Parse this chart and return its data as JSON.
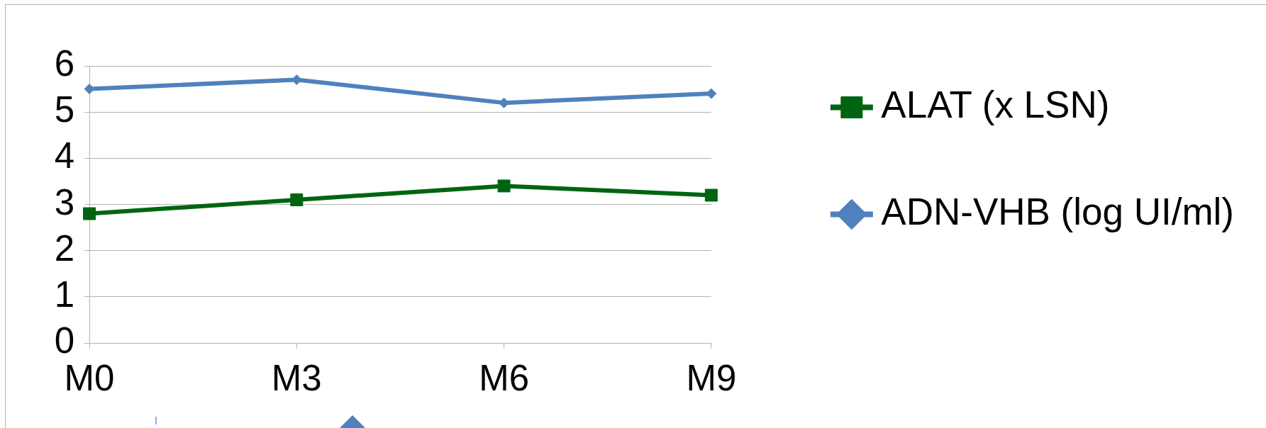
{
  "chart_data": {
    "type": "line",
    "categories": [
      "M0",
      "M3",
      "M6",
      "M9"
    ],
    "series": [
      {
        "name": "ALAT (x LSN)",
        "color": "#006411",
        "marker": "square",
        "values": [
          2.8,
          3.1,
          3.4,
          3.2
        ]
      },
      {
        "name": "ADN-VHB (log UI/ml)",
        "color": "#4f81bd",
        "marker": "diamond",
        "values": [
          5.5,
          5.7,
          5.2,
          5.4
        ]
      }
    ],
    "ylim": [
      0,
      6
    ],
    "yticks": [
      0,
      1,
      2,
      3,
      4,
      5,
      6
    ],
    "grid": "y",
    "legend": "right"
  }
}
